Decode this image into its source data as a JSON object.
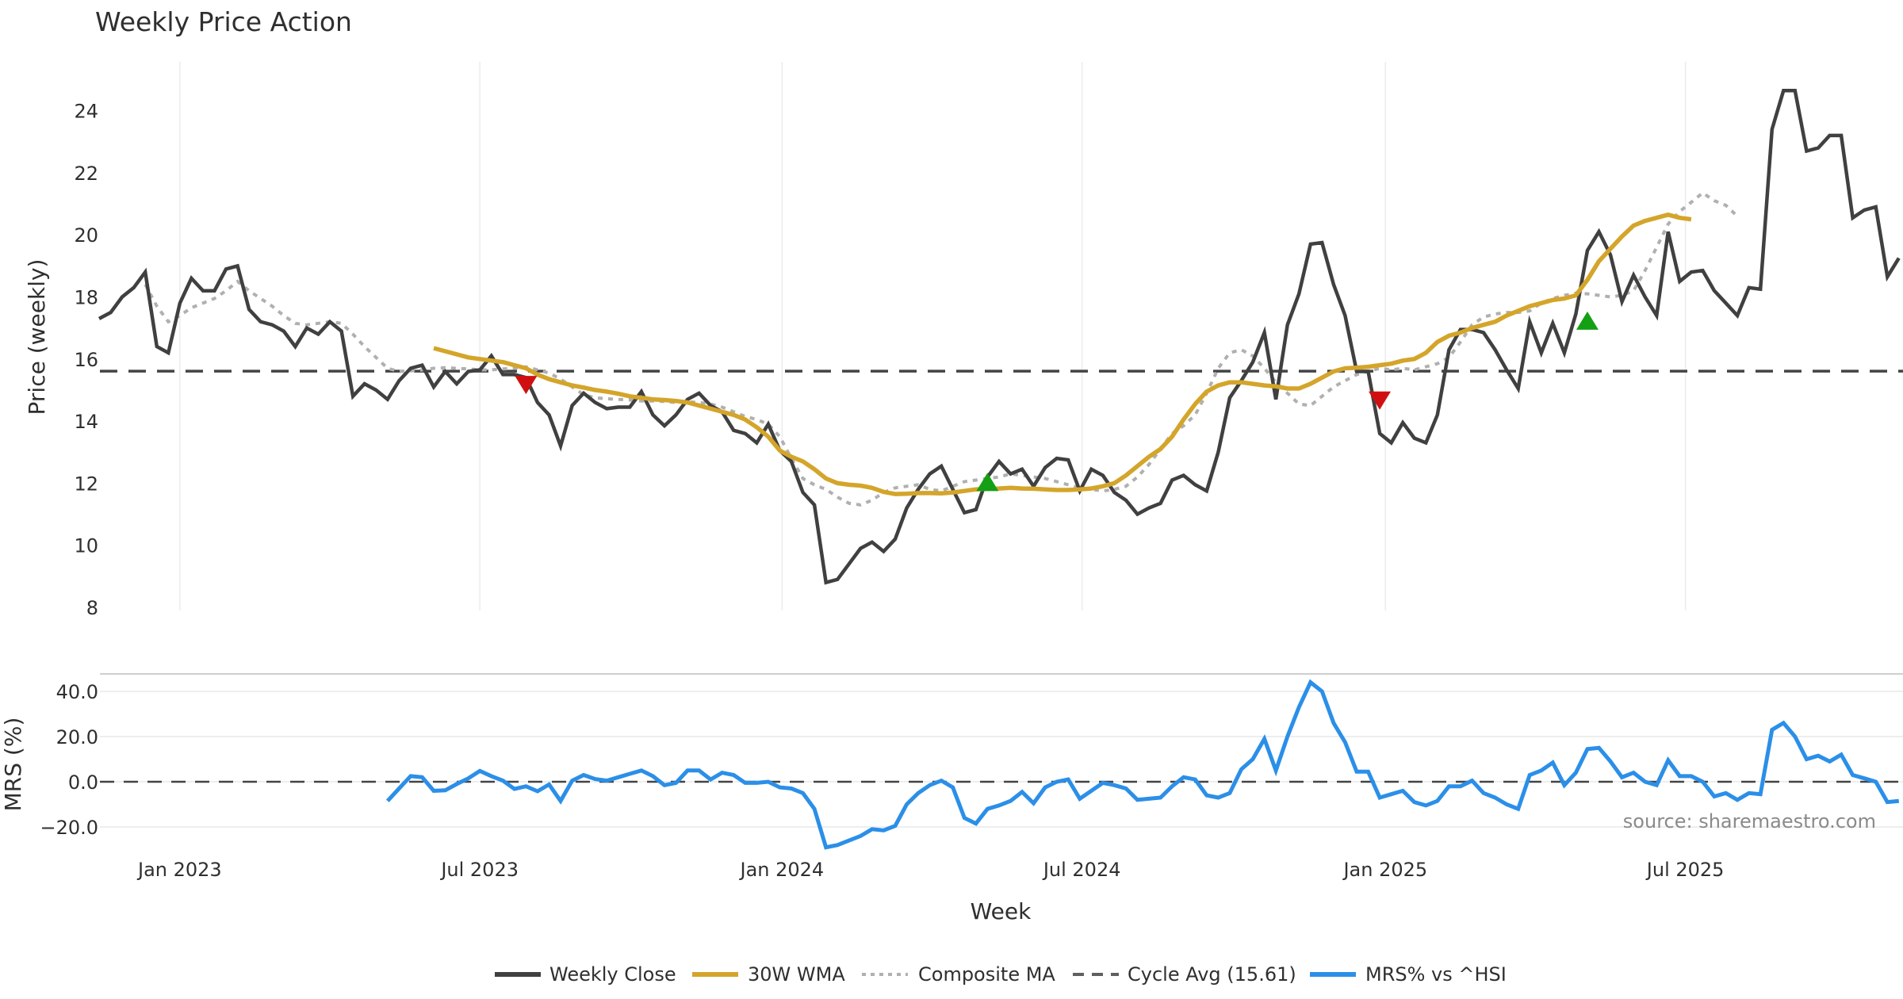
{
  "colors": {
    "close": "#404040",
    "wma": "#D4A52A",
    "composite": "#B0B0B0",
    "cycle": "#404040",
    "mrs": "#2B8FE8",
    "buy": "#14A014",
    "sell": "#D01010",
    "grid": "#ECECEC"
  },
  "chart_data": [
    {
      "type": "line",
      "title": "Weekly Price Action",
      "xlabel": "Week",
      "ylabel": "Price (weekly)",
      "ylim": [
        8,
        25.5
      ],
      "xlim": [
        0,
        156
      ],
      "yticks": [
        8,
        10,
        12,
        14,
        16,
        18,
        20,
        22,
        24
      ],
      "ytick_labels": [
        "8",
        "10",
        "12",
        "14",
        "16",
        "18",
        "20",
        "22",
        "24"
      ],
      "grid": "vertical",
      "series": [
        {
          "name": "Weekly Close",
          "x_start": 0,
          "values": [
            17.3,
            17.5,
            18.0,
            18.3,
            18.8,
            16.4,
            16.2,
            17.8,
            18.6,
            18.2,
            18.2,
            18.9,
            19.0,
            17.6,
            17.2,
            17.1,
            16.9,
            16.4,
            17.0,
            16.8,
            17.2,
            16.9,
            14.8,
            15.2,
            15.0,
            14.7,
            15.3,
            15.7,
            15.8,
            15.1,
            15.6,
            15.2,
            15.6,
            15.65,
            16.1,
            15.5,
            15.5,
            15.4,
            14.6,
            14.2,
            13.2,
            14.5,
            14.9,
            14.6,
            14.4,
            14.45,
            14.45,
            14.95,
            14.2,
            13.85,
            14.2,
            14.7,
            14.9,
            14.5,
            14.3,
            13.7,
            13.6,
            13.3,
            13.9,
            13.05,
            12.7,
            11.7,
            11.3,
            8.8,
            8.9,
            9.4,
            9.9,
            10.1,
            9.8,
            10.2,
            11.2,
            11.8,
            12.3,
            12.55,
            11.8,
            11.05,
            11.15,
            12.2,
            12.7,
            12.3,
            12.45,
            11.9,
            12.5,
            12.8,
            12.75,
            11.75,
            12.45,
            12.25,
            11.7,
            11.45,
            11.0,
            11.2,
            11.35,
            12.1,
            12.25,
            11.95,
            11.75,
            13.0,
            14.75,
            15.3,
            15.9,
            16.85,
            14.7,
            17.1,
            18.1,
            19.7,
            19.75,
            18.4,
            17.4,
            15.6,
            15.6,
            13.6,
            13.3,
            13.95,
            13.45,
            13.3,
            14.2,
            16.3,
            16.95,
            16.95,
            16.85,
            16.3,
            15.65,
            15.05,
            17.2,
            16.2,
            17.15,
            16.2,
            17.45,
            19.5,
            20.1,
            19.35,
            17.85,
            18.7,
            18.0,
            17.4,
            20.1,
            18.5,
            18.8,
            18.85,
            18.2,
            17.8,
            17.4,
            18.3,
            18.25,
            23.4,
            24.65,
            24.65,
            22.7,
            22.8,
            23.2,
            23.2,
            20.55,
            20.8,
            20.9,
            18.65,
            19.25
          ]
        },
        {
          "name": "30W WMA",
          "x_start": 29,
          "values": [
            16.35,
            16.25,
            16.15,
            16.05,
            16.0,
            15.95,
            15.9,
            15.8,
            15.7,
            15.5,
            15.35,
            15.25,
            15.15,
            15.08,
            15.0,
            14.95,
            14.88,
            14.8,
            14.75,
            14.7,
            14.68,
            14.65,
            14.6,
            14.5,
            14.4,
            14.3,
            14.2,
            14.05,
            13.8,
            13.5,
            13.05,
            12.85,
            12.7,
            12.45,
            12.15,
            12.0,
            11.95,
            11.92,
            11.85,
            11.72,
            11.65,
            11.66,
            11.68,
            11.68,
            11.67,
            11.7,
            11.75,
            11.8,
            11.82,
            11.83,
            11.85,
            11.83,
            11.82,
            11.8,
            11.78,
            11.78,
            11.8,
            11.83,
            11.9,
            12.0,
            12.25,
            12.55,
            12.85,
            13.1,
            13.5,
            14.05,
            14.55,
            14.95,
            15.15,
            15.25,
            15.25,
            15.2,
            15.15,
            15.12,
            15.05,
            15.05,
            15.2,
            15.4,
            15.6,
            15.7,
            15.72,
            15.75,
            15.8,
            15.85,
            15.95,
            16.0,
            16.2,
            16.55,
            16.75,
            16.85,
            17.0,
            17.1,
            17.2,
            17.4,
            17.55,
            17.7,
            17.8,
            17.9,
            17.95,
            18.05,
            18.55,
            19.15,
            19.55,
            19.95,
            20.3,
            20.45,
            20.55,
            20.65,
            20.55,
            20.5
          ]
        },
        {
          "name": "Composite MA",
          "x_start": 4,
          "values": [
            18.4,
            17.7,
            17.2,
            17.4,
            17.65,
            17.8,
            17.95,
            18.2,
            18.5,
            18.2,
            17.95,
            17.7,
            17.4,
            17.15,
            17.1,
            17.15,
            17.2,
            17.15,
            16.8,
            16.4,
            16.05,
            15.7,
            15.6,
            15.62,
            15.65,
            15.7,
            15.72,
            15.7,
            15.68,
            15.65,
            15.65,
            15.68,
            15.7,
            15.75,
            15.65,
            15.55,
            15.35,
            15.1,
            14.85,
            14.75,
            14.72,
            14.7,
            14.68,
            14.65,
            14.65,
            14.63,
            14.6,
            14.62,
            14.6,
            14.55,
            14.45,
            14.3,
            14.15,
            14.05,
            13.9,
            13.5,
            12.8,
            12.15,
            11.95,
            11.8,
            11.55,
            11.35,
            11.3,
            11.45,
            11.7,
            11.85,
            11.9,
            11.95,
            11.8,
            11.75,
            11.9,
            12.05,
            12.1,
            12.15,
            12.2,
            12.3,
            12.25,
            12.2,
            12.15,
            12.05,
            11.95,
            11.85,
            11.8,
            11.75,
            11.8,
            11.9,
            12.2,
            12.6,
            13.1,
            13.6,
            13.85,
            14.2,
            14.9,
            15.7,
            16.2,
            16.3,
            16.1,
            15.7,
            15.25,
            14.9,
            14.55,
            14.5,
            14.8,
            15.1,
            15.3,
            15.5,
            15.6,
            15.7,
            15.65,
            15.7,
            15.65,
            15.75,
            15.85,
            16.05,
            16.55,
            17.1,
            17.35,
            17.45,
            17.5,
            17.5,
            17.55,
            17.8,
            17.95,
            18.05,
            18.12,
            18.1,
            18.05,
            18.0,
            18.05,
            18.2,
            18.85,
            19.6,
            20.35,
            20.75,
            21.05,
            21.35,
            21.1,
            20.95,
            20.6
          ]
        },
        {
          "name": "Cycle Avg (15.61)",
          "constant": 15.61
        }
      ],
      "markers": [
        {
          "type": "sell",
          "x": 37,
          "value": 15.2
        },
        {
          "type": "buy",
          "x": 77,
          "value": 12.0
        },
        {
          "type": "sell",
          "x": 111,
          "value": 14.7
        },
        {
          "type": "buy",
          "x": 129,
          "value": 17.2
        }
      ],
      "legend": {
        "placement": "bottom-center",
        "entries": [
          "Weekly Close",
          "30W WMA",
          "Composite MA",
          "Cycle Avg (15.61)",
          "MRS% vs ^HSI"
        ]
      }
    },
    {
      "type": "line",
      "ylabel": "MRS (%)",
      "ylim": [
        -28,
        47
      ],
      "yticks": [
        -20,
        0,
        20,
        40
      ],
      "ytick_labels": [
        "−20.0",
        "0.0",
        "20.0",
        "40.0"
      ],
      "xticks": [
        7,
        33,
        59.2,
        85.2,
        111.5,
        137.5
      ],
      "xtick_labels": [
        "Jan 2023",
        "Jul 2023",
        "Jan 2024",
        "Jul 2024",
        "Jan 2025",
        "Jul 2025"
      ],
      "xlabel": "Week",
      "reference_line": 0,
      "annotation": "source: sharemaestro.com",
      "series": [
        {
          "name": "MRS% vs ^HSI",
          "x_start": 25,
          "values": [
            -8.5,
            -3,
            2.5,
            2,
            -4,
            -3.8,
            -1,
            1.5,
            4.8,
            2.5,
            0.5,
            -3.2,
            -2,
            -4.2,
            -1.2,
            -8.5,
            0.5,
            3,
            1.2,
            0.5,
            2,
            3.5,
            5,
            2.5,
            -1.5,
            -0.5,
            5,
            5,
            1,
            4,
            3,
            -0.5,
            -0.5,
            0,
            -2.5,
            -3,
            -5,
            -12,
            -29,
            -28,
            -26,
            -24,
            -21,
            -21.5,
            -19.5,
            -10,
            -5,
            -1.5,
            0.5,
            -2.5,
            -16,
            -18.5,
            -12,
            -10.5,
            -8.5,
            -4.5,
            -9.5,
            -2.5,
            0,
            1,
            -7.5,
            -4,
            -0.5,
            -1.5,
            -3,
            -8,
            -7.5,
            -7,
            -2,
            2,
            1,
            -6,
            -7,
            -5,
            5.5,
            10,
            19,
            5,
            20,
            33,
            44,
            40,
            26,
            17.5,
            4.5,
            4.5,
            -7,
            -5.5,
            -4,
            -9,
            -10.5,
            -8.5,
            -2,
            -2,
            0.5,
            -5,
            -7,
            -10,
            -12,
            3,
            5,
            8.5,
            -1.5,
            4,
            14.5,
            15,
            9,
            2,
            4,
            0,
            -1.5,
            9.5,
            2.5,
            2.5,
            0,
            -6.5,
            -5,
            -8,
            -5,
            -5.5,
            23,
            26,
            20,
            10,
            11.5,
            9,
            12,
            3,
            1.5,
            0,
            -9,
            -8.5
          ]
        }
      ]
    }
  ]
}
